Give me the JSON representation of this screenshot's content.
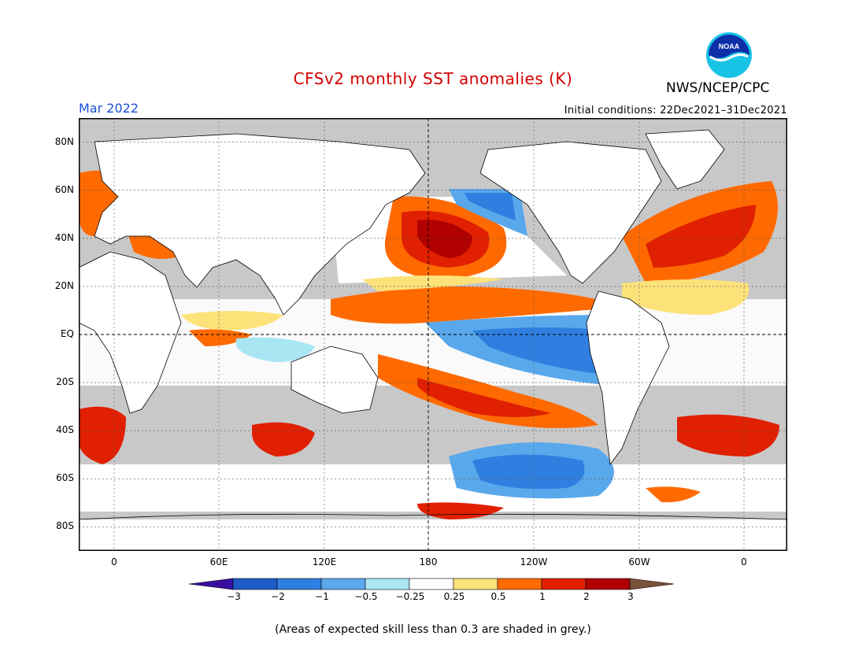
{
  "header": {
    "title": "CFSv2 monthly SST anomalies (K)",
    "agency": "NWS/NCEP/CPC",
    "logo_text": "NOAA",
    "month": "Mar 2022",
    "initial_conditions": "Initial conditions: 22Dec2021–31Dec2021"
  },
  "map": {
    "lat_labels": [
      "80N",
      "60N",
      "40N",
      "20N",
      "EQ",
      "20S",
      "40S",
      "60S",
      "80S"
    ],
    "lon_labels": [
      "0",
      "60E",
      "120E",
      "180",
      "120W",
      "60W",
      "0"
    ],
    "missing_color": "#c8c8c8",
    "land_color": "#ffffff"
  },
  "colorbar": {
    "labels": [
      "−3",
      "−2",
      "−1",
      "−0.5",
      "−0.25",
      "0.25",
      "0.5",
      "1",
      "2",
      "3"
    ],
    "colors": [
      "#3b0fa0",
      "#1d5cc4",
      "#2f7fe0",
      "#5aa8ec",
      "#a8e6f4",
      "#ffffff",
      "#fde27a",
      "#ff6a00",
      "#e02000",
      "#b00000",
      "#7a5238"
    ]
  },
  "footnote": "(Areas of expected skill less than 0.3 are shaded in grey.)"
}
